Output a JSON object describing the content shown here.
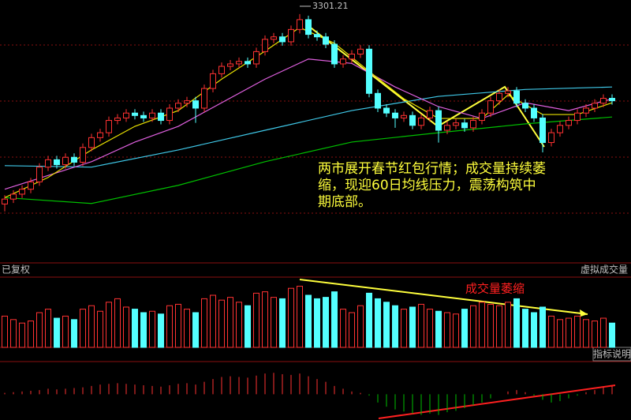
{
  "chart_data": {
    "type": "candlestick",
    "annotation": "两市展开春节红包行情；成交量持续萎缩，现迎60日均线压力，震荡构筑中期底部。",
    "volume_annotation": "成交量萎缩",
    "left_label": "已复权",
    "volume_label": "虚拟成交量",
    "indicator_button": "指标说明",
    "up_color": "#ff3232",
    "down_color": "#54ffff",
    "macd_up_color": "#ff3232",
    "macd_down_color": "#00c000",
    "ylim": [
      2800,
      3330
    ],
    "volume_ylim": [
      0,
      100
    ],
    "macd_ylim": [
      -35,
      45
    ],
    "peak_index": 34,
    "open": [
      2915,
      2925,
      2935,
      2945,
      2960,
      2990,
      3005,
      2995,
      3010,
      3000,
      3030,
      3050,
      3060,
      3085,
      3090,
      3100,
      3095,
      3090,
      3100,
      3085,
      3110,
      3120,
      3125,
      3110,
      3150,
      3180,
      3195,
      3200,
      3205,
      3200,
      3225,
      3250,
      3255,
      3245,
      3270,
      3290,
      3260,
      3255,
      3240,
      3200,
      3210,
      3220,
      3230,
      3140,
      3110,
      3100,
      3090,
      3095,
      3075,
      3090,
      3105,
      3065,
      3075,
      3080,
      3070,
      3085,
      3100,
      3125,
      3140,
      3145,
      3120,
      3110,
      3090,
      3040,
      3060,
      3075,
      3085,
      3100,
      3110,
      3120,
      3130
    ],
    "close": [
      2925,
      2935,
      2945,
      2960,
      2990,
      3005,
      2995,
      3010,
      3000,
      3030,
      3050,
      3060,
      3085,
      3090,
      3100,
      3095,
      3090,
      3100,
      3085,
      3110,
      3120,
      3125,
      3110,
      3150,
      3180,
      3195,
      3200,
      3205,
      3200,
      3225,
      3250,
      3255,
      3245,
      3270,
      3290,
      3260,
      3255,
      3240,
      3200,
      3210,
      3220,
      3230,
      3140,
      3110,
      3100,
      3090,
      3095,
      3075,
      3090,
      3105,
      3065,
      3075,
      3080,
      3070,
      3085,
      3100,
      3125,
      3140,
      3145,
      3120,
      3110,
      3090,
      3040,
      3060,
      3075,
      3085,
      3100,
      3110,
      3120,
      3130,
      3125
    ],
    "high": [
      2933,
      2943,
      2953,
      2968,
      2998,
      3013,
      3013,
      3018,
      3018,
      3038,
      3058,
      3068,
      3093,
      3098,
      3108,
      3108,
      3103,
      3108,
      3108,
      3118,
      3128,
      3133,
      3133,
      3158,
      3188,
      3203,
      3208,
      3213,
      3213,
      3233,
      3258,
      3263,
      3263,
      3278,
      3301.21,
      3298,
      3268,
      3263,
      3248,
      3218,
      3228,
      3238,
      3238,
      3148,
      3118,
      3108,
      3103,
      3103,
      3098,
      3113,
      3113,
      3083,
      3088,
      3088,
      3093,
      3108,
      3133,
      3148,
      3153,
      3153,
      3128,
      3118,
      3098,
      3068,
      3083,
      3093,
      3108,
      3118,
      3128,
      3138,
      3138
    ],
    "low": [
      2900,
      2917,
      2927,
      2937,
      2952,
      2982,
      2987,
      2987,
      2992,
      2992,
      3022,
      3042,
      3052,
      3077,
      3082,
      3087,
      3082,
      3082,
      3077,
      3077,
      3102,
      3112,
      3080,
      3102,
      3142,
      3172,
      3187,
      3192,
      3192,
      3192,
      3217,
      3242,
      3237,
      3237,
      3262,
      3252,
      3247,
      3232,
      3192,
      3192,
      3202,
      3212,
      3132,
      3102,
      3092,
      3070,
      3082,
      3067,
      3067,
      3082,
      3040,
      3057,
      3067,
      3062,
      3062,
      3077,
      3092,
      3117,
      3132,
      3112,
      3102,
      3082,
      3020,
      3032,
      3052,
      3067,
      3077,
      3092,
      3102,
      3112,
      3117
    ],
    "volume": [
      45,
      40,
      35,
      38,
      50,
      55,
      42,
      45,
      40,
      55,
      60,
      52,
      65,
      70,
      58,
      55,
      50,
      52,
      48,
      60,
      62,
      55,
      50,
      70,
      75,
      68,
      72,
      65,
      60,
      78,
      80,
      72,
      70,
      85,
      88,
      75,
      70,
      72,
      80,
      55,
      50,
      60,
      78,
      70,
      65,
      60,
      55,
      58,
      62,
      55,
      52,
      50,
      48,
      55,
      60,
      65,
      62,
      60,
      65,
      70,
      55,
      50,
      58,
      45,
      40,
      42,
      45,
      40,
      38,
      42,
      35
    ],
    "macd": [
      2,
      3,
      4,
      5,
      6,
      8,
      7,
      8,
      9,
      10,
      12,
      14,
      15,
      16,
      15,
      14,
      13,
      12,
      11,
      13,
      15,
      16,
      14,
      18,
      22,
      25,
      26,
      25,
      24,
      27,
      30,
      31,
      29,
      28,
      30,
      26,
      22,
      18,
      12,
      8,
      4,
      2,
      -2,
      -12,
      -18,
      -22,
      -25,
      -28,
      -30,
      -28,
      -30,
      -26,
      -24,
      -20,
      -16,
      -12,
      -6,
      0,
      4,
      6,
      3,
      -2,
      -8,
      -12,
      -10,
      -6,
      -2,
      3,
      6,
      10,
      12
    ],
    "ma_lines": [
      {
        "color": "#00c000",
        "x": [
          0,
          10,
          20,
          30,
          40,
          50,
          60,
          70
        ],
        "values": [
          2928,
          2916,
          2953,
          3001,
          3041,
          3060,
          3078,
          3092
        ]
      },
      {
        "color": "#3fc8e8",
        "x": [
          0,
          10,
          20,
          30,
          40,
          50,
          60,
          70
        ],
        "values": [
          2993,
          2990,
          3025,
          3065,
          3105,
          3134,
          3148,
          3153
        ]
      },
      {
        "color": "#e060e0",
        "x": [
          0,
          10,
          15,
          20,
          25,
          30,
          35,
          40,
          45,
          50,
          55,
          60,
          65,
          70
        ],
        "values": [
          2945,
          3001,
          3041,
          3073,
          3121,
          3169,
          3210,
          3201,
          3153,
          3113,
          3089,
          3121,
          3105,
          3129
        ]
      },
      {
        "color": "#e8e000",
        "x": [
          0,
          5,
          10,
          15,
          20,
          25,
          30,
          34,
          38,
          42,
          46,
          50,
          55,
          58,
          62,
          66,
          70
        ],
        "values": [
          2928,
          2969,
          3025,
          3073,
          3105,
          3169,
          3226,
          3274,
          3242,
          3185,
          3129,
          3089,
          3089,
          3137,
          3097,
          3097,
          3121
        ]
      }
    ]
  }
}
